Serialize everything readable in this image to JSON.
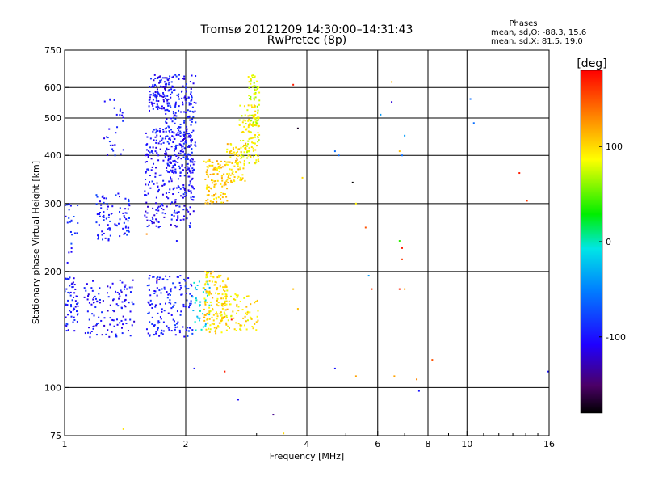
{
  "chart_data": {
    "type": "scatter",
    "title": "Tromsø 20121209 14:30:00–14:31:43",
    "subtitle": "RwPretec (8p)",
    "xlabel": "Frequency [MHz]",
    "ylabel": "Stationary phase Virtual Height [km]",
    "xscale": "log",
    "yscale": "log",
    "xlim": [
      1,
      16
    ],
    "ylim": [
      75,
      750
    ],
    "x_ticks": [
      1,
      2,
      4,
      6,
      8,
      10,
      16
    ],
    "x_tick_labels": [
      "1",
      "2",
      "4",
      "6",
      "8",
      "10",
      "16"
    ],
    "y_ticks": [
      75,
      100,
      200,
      300,
      400,
      500,
      600,
      750
    ],
    "y_tick_labels": [
      "75",
      "100",
      "200",
      "300",
      "400",
      "500",
      "600",
      "750"
    ],
    "x_gridlines": [
      2,
      4,
      6,
      8,
      10
    ],
    "y_gridlines": [
      100,
      200,
      300,
      400,
      500,
      600
    ],
    "grid": true,
    "stats": {
      "title": "Phases",
      "line_o": "mean, sd,O: -88.3, 15.6",
      "line_x": "mean, sd,X:  81.5, 19.0"
    },
    "colorbar": {
      "label": "[deg]",
      "range": [
        -180,
        180
      ],
      "ticks": [
        100,
        0,
        -100
      ],
      "tick_labels": [
        "100",
        "0",
        "-100"
      ],
      "colormap": "rainbow"
    },
    "clusters": [
      {
        "f": [
          1.0,
          1.08
        ],
        "h": [
          140,
          195
        ],
        "phase": -100,
        "n": 60
      },
      {
        "f": [
          1.0,
          1.08
        ],
        "h": [
          210,
          300
        ],
        "phase": -90,
        "n": 25
      },
      {
        "f": [
          1.12,
          1.5
        ],
        "h": [
          135,
          190
        ],
        "phase": -105,
        "n": 120
      },
      {
        "f": [
          1.2,
          1.45
        ],
        "h": [
          240,
          320
        ],
        "phase": -95,
        "n": 90
      },
      {
        "f": [
          1.25,
          1.4
        ],
        "h": [
          400,
          560
        ],
        "phase": -100,
        "n": 30
      },
      {
        "f": [
          1.62,
          1.82
        ],
        "h": [
          520,
          650
        ],
        "phase": -105,
        "n": 100
      },
      {
        "f": [
          1.58,
          2.1
        ],
        "h": [
          260,
          470
        ],
        "phase": -105,
        "n": 300
      },
      {
        "f": [
          1.78,
          2.12
        ],
        "h": [
          360,
          650
        ],
        "phase": -100,
        "n": 240
      },
      {
        "f": [
          1.6,
          2.08
        ],
        "h": [
          135,
          195
        ],
        "phase": -95,
        "n": 150
      },
      {
        "f": [
          2.08,
          2.3
        ],
        "h": [
          140,
          190
        ],
        "phase": -20,
        "n": 40
      },
      {
        "f": [
          2.22,
          2.55
        ],
        "h": [
          300,
          390
        ],
        "phase": 105,
        "n": 110
      },
      {
        "f": [
          2.52,
          2.82
        ],
        "h": [
          340,
          430
        ],
        "phase": 100,
        "n": 80
      },
      {
        "f": [
          2.72,
          3.05
        ],
        "h": [
          380,
          540
        ],
        "phase": 88,
        "n": 120
      },
      {
        "f": [
          2.85,
          3.05
        ],
        "h": [
          480,
          650
        ],
        "phase": 78,
        "n": 60
      },
      {
        "f": [
          2.22,
          2.55
        ],
        "h": [
          138,
          200
        ],
        "phase": 98,
        "n": 150
      },
      {
        "f": [
          2.5,
          3.05
        ],
        "h": [
          140,
          175
        ],
        "phase": 95,
        "n": 70
      }
    ],
    "scatter_points": [
      [
        1.4,
        78,
        95
      ],
      [
        2.1,
        112,
        -100
      ],
      [
        2.5,
        110,
        170
      ],
      [
        2.7,
        93,
        -105
      ],
      [
        3.3,
        85,
        -140
      ],
      [
        3.5,
        76,
        100
      ],
      [
        3.7,
        610,
        170
      ],
      [
        3.8,
        470,
        -170
      ],
      [
        3.9,
        350,
        100
      ],
      [
        3.7,
        180,
        110
      ],
      [
        3.8,
        160,
        110
      ],
      [
        4.7,
        410,
        -60
      ],
      [
        4.8,
        400,
        -60
      ],
      [
        5.2,
        340,
        -180
      ],
      [
        5.3,
        300,
        90
      ],
      [
        4.7,
        112,
        -100
      ],
      [
        5.3,
        107,
        120
      ],
      [
        5.6,
        260,
        150
      ],
      [
        5.7,
        195,
        -40
      ],
      [
        5.8,
        180,
        160
      ],
      [
        6.1,
        510,
        -40
      ],
      [
        6.5,
        550,
        -120
      ],
      [
        6.5,
        620,
        110
      ],
      [
        6.8,
        410,
        110
      ],
      [
        6.9,
        400,
        -60
      ],
      [
        7.0,
        450,
        -40
      ],
      [
        6.8,
        240,
        40
      ],
      [
        6.9,
        230,
        170
      ],
      [
        6.9,
        215,
        160
      ],
      [
        6.8,
        180,
        170
      ],
      [
        7.0,
        180,
        120
      ],
      [
        6.6,
        107,
        120
      ],
      [
        7.5,
        105,
        130
      ],
      [
        7.6,
        98,
        -100
      ],
      [
        8.2,
        118,
        150
      ],
      [
        10.2,
        560,
        -60
      ],
      [
        10.4,
        485,
        -60
      ],
      [
        13.5,
        360,
        170
      ],
      [
        14.1,
        305,
        160
      ],
      [
        15.9,
        110,
        -100
      ],
      [
        2.6,
        150,
        170
      ],
      [
        1.7,
        190,
        160
      ],
      [
        1.6,
        250,
        130
      ],
      [
        1.9,
        240,
        -100
      ]
    ]
  }
}
